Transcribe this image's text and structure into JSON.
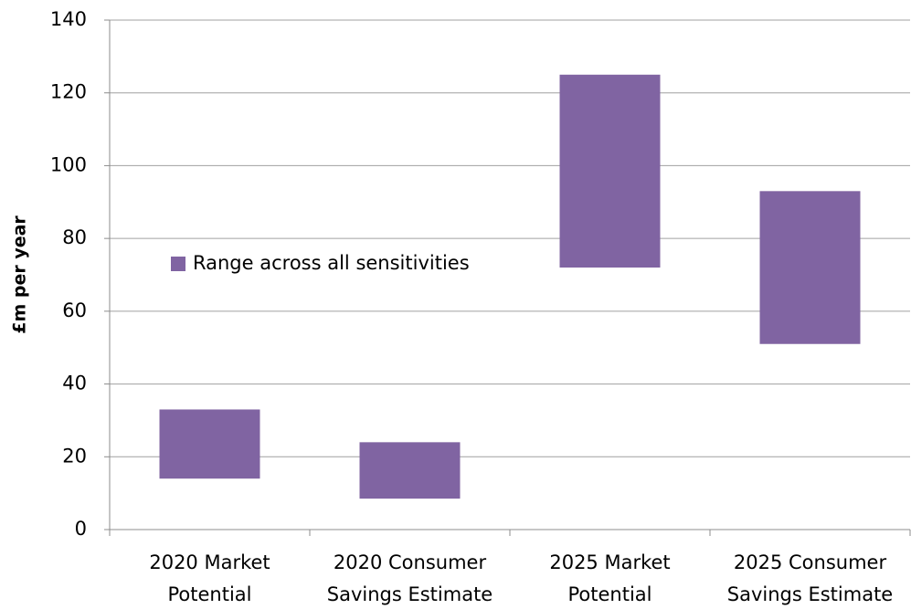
{
  "chart_data": {
    "type": "range-bar",
    "y_label": "£m per year",
    "categories": [
      [
        "2020 Market",
        "Potential"
      ],
      [
        "2020 Consumer",
        "Savings Estimate"
      ],
      [
        "2025 Market",
        "Potential"
      ],
      [
        "2025 Consumer",
        "Savings Estimate"
      ]
    ],
    "series": [
      {
        "name": "Range across all sensitivities",
        "color": "#8064a2",
        "low": [
          14,
          8.5,
          72,
          51
        ],
        "high": [
          33,
          24,
          125,
          93
        ]
      }
    ],
    "ylim": [
      0,
      140
    ],
    "yticks": [
      0,
      20,
      40,
      60,
      80,
      100,
      120,
      140
    ],
    "grid": true,
    "legend": "middle-left"
  }
}
